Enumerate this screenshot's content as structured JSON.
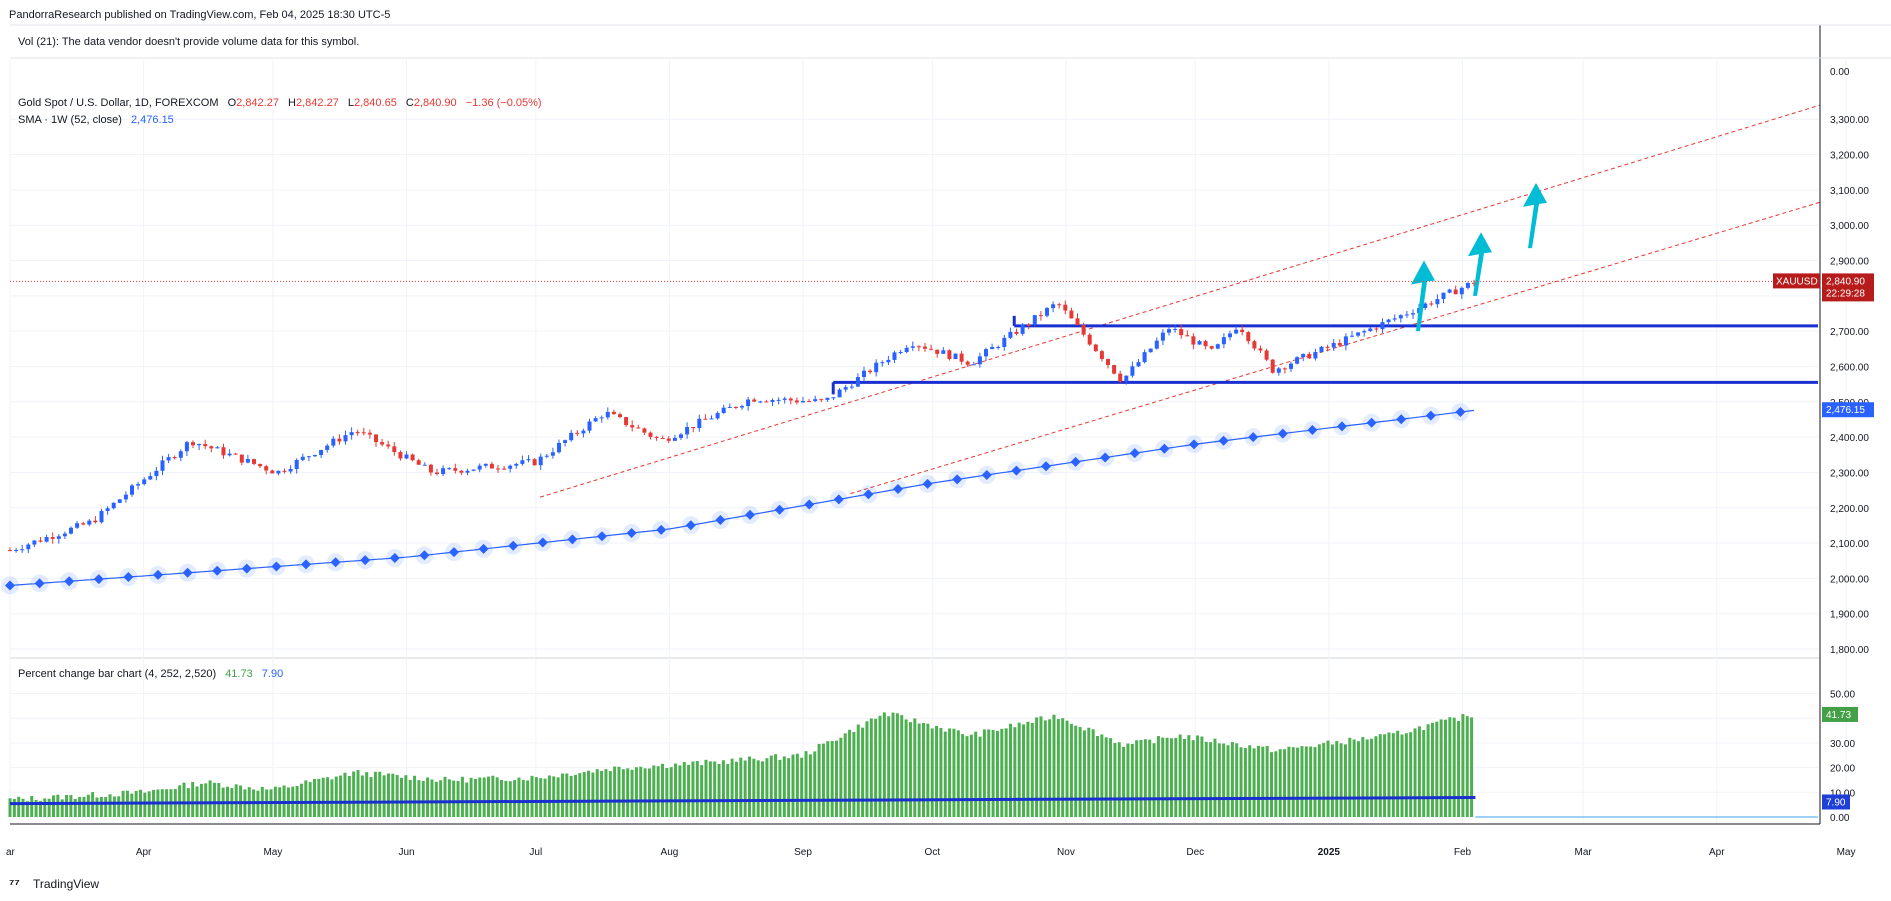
{
  "header": {
    "publisher_line": "PandorraResearch published on TradingView.com, Feb 04, 2025 18:30 UTC-5",
    "vol_notice": "Vol (21): The data vendor doesn't provide volume data for this symbol."
  },
  "legend": {
    "symbol_line": "Gold Spot / U.S. Dollar, 1D, FOREXCOM",
    "open_label": "O",
    "open": "2,842.27",
    "high_label": "H",
    "high": "2,842.27",
    "low_label": "L",
    "low": "2,840.65",
    "close_label": "C",
    "close": "2,840.90",
    "change": "−1.36 (−0.05%)",
    "sma_label": "SMA · 1W (52, close)",
    "sma_value": "2,476.15",
    "pct_label": "Percent change bar chart (4, 252, 2,520)",
    "pct_value_1": "41.73",
    "pct_value_2": "7.90"
  },
  "price_badge": {
    "symbol": "XAUUSD",
    "price": "2,840.90",
    "countdown": "22:29:28",
    "color": "#b71c1c"
  },
  "sma_badge": {
    "value": "2,476.15",
    "color": "#2962ff"
  },
  "pct_badges": {
    "v1": "41.73",
    "v1_color": "#43a047",
    "v2": "7.90",
    "v2_color": "#1e3fd8"
  },
  "footer": {
    "logo_text": "TradingView"
  },
  "colors": {
    "up": "#2962ff",
    "down": "#e53935",
    "pct_bar": "#4caf50",
    "pct_line": "#1a2fd0",
    "level": "#1a2fd0",
    "arrow": "#00bcd4",
    "channel": "#e53935"
  },
  "chart_data": [
    {
      "type": "candlestick",
      "symbol": "XAUUSD",
      "timeframe": "1D",
      "x_ticks": [
        "Mar",
        "Apr",
        "May",
        "Jun",
        "Jul",
        "Aug",
        "Sep",
        "Oct",
        "Nov",
        "Dec",
        "2025",
        "Feb",
        "Mar",
        "Apr",
        "May"
      ],
      "y_ticks": [
        "0.00",
        "3,300.00",
        "3,200.00",
        "3,100.00",
        "3,000.00",
        "2,900.00",
        "2,800.00",
        "2,700.00",
        "2,600.00",
        "2,500.00",
        "2,400.00",
        "2,300.00",
        "2,200.00",
        "2,100.00",
        "2,000.00",
        "1,900.00",
        "1,800.00"
      ],
      "ylim": [
        1770,
        3400
      ],
      "price_path_monthly": [
        {
          "date": "2024-03-01",
          "close": 2080
        },
        {
          "date": "2024-03-20",
          "close": 2160
        },
        {
          "date": "2024-04-12",
          "close": 2390
        },
        {
          "date": "2024-05-02",
          "close": 2300
        },
        {
          "date": "2024-05-20",
          "close": 2420
        },
        {
          "date": "2024-06-07",
          "close": 2300
        },
        {
          "date": "2024-07-01",
          "close": 2330
        },
        {
          "date": "2024-07-17",
          "close": 2470
        },
        {
          "date": "2024-07-30",
          "close": 2390
        },
        {
          "date": "2024-08-20",
          "close": 2510
        },
        {
          "date": "2024-09-06",
          "close": 2500
        },
        {
          "date": "2024-09-26",
          "close": 2670
        },
        {
          "date": "2024-10-10",
          "close": 2610
        },
        {
          "date": "2024-10-30",
          "close": 2780
        },
        {
          "date": "2024-11-14",
          "close": 2560
        },
        {
          "date": "2024-11-25",
          "close": 2710
        },
        {
          "date": "2024-12-05",
          "close": 2640
        },
        {
          "date": "2024-12-11",
          "close": 2720
        },
        {
          "date": "2024-12-19",
          "close": 2590
        },
        {
          "date": "2025-01-02",
          "close": 2660
        },
        {
          "date": "2025-01-17",
          "close": 2740
        },
        {
          "date": "2025-02-04",
          "close": 2840.9
        }
      ],
      "sma_52w": [
        {
          "date": "2024-03-01",
          "value": 1980
        },
        {
          "date": "2024-06-01",
          "value": 2060
        },
        {
          "date": "2024-08-01",
          "value": 2140
        },
        {
          "date": "2024-10-01",
          "value": 2270
        },
        {
          "date": "2024-12-01",
          "value": 2380
        },
        {
          "date": "2025-02-04",
          "value": 2476.15
        }
      ],
      "horizontal_levels": [
        2715,
        2555
      ],
      "last_price": 2840.9
    },
    {
      "type": "bar",
      "title": "Percent change bar chart (4, 252, 2,520)",
      "y_ticks": [
        "50.00",
        "40.00",
        "30.00",
        "20.00",
        "10.00",
        "0.00"
      ],
      "ylim": [
        0,
        52
      ],
      "series": [
        {
          "name": "41.73",
          "values_monthly": [
            {
              "date": "2024-03-01",
              "value": 7
            },
            {
              "date": "2024-04-01",
              "value": 10
            },
            {
              "date": "2024-04-15",
              "value": 14
            },
            {
              "date": "2024-05-01",
              "value": 11
            },
            {
              "date": "2024-05-20",
              "value": 18
            },
            {
              "date": "2024-06-10",
              "value": 15
            },
            {
              "date": "2024-07-01",
              "value": 16
            },
            {
              "date": "2024-07-20",
              "value": 20
            },
            {
              "date": "2024-08-10",
              "value": 22
            },
            {
              "date": "2024-09-01",
              "value": 25
            },
            {
              "date": "2024-09-20",
              "value": 42
            },
            {
              "date": "2024-10-10",
              "value": 33
            },
            {
              "date": "2024-10-30",
              "value": 41
            },
            {
              "date": "2024-11-15",
              "value": 29
            },
            {
              "date": "2024-11-27",
              "value": 33
            },
            {
              "date": "2024-12-20",
              "value": 27
            },
            {
              "date": "2025-01-15",
              "value": 33
            },
            {
              "date": "2025-02-04",
              "value": 41.73
            }
          ]
        },
        {
          "name": "7.90",
          "values_monthly": [
            {
              "date": "2024-03-01",
              "value": 5.4
            },
            {
              "date": "2025-02-04",
              "value": 7.9
            }
          ]
        }
      ]
    }
  ]
}
